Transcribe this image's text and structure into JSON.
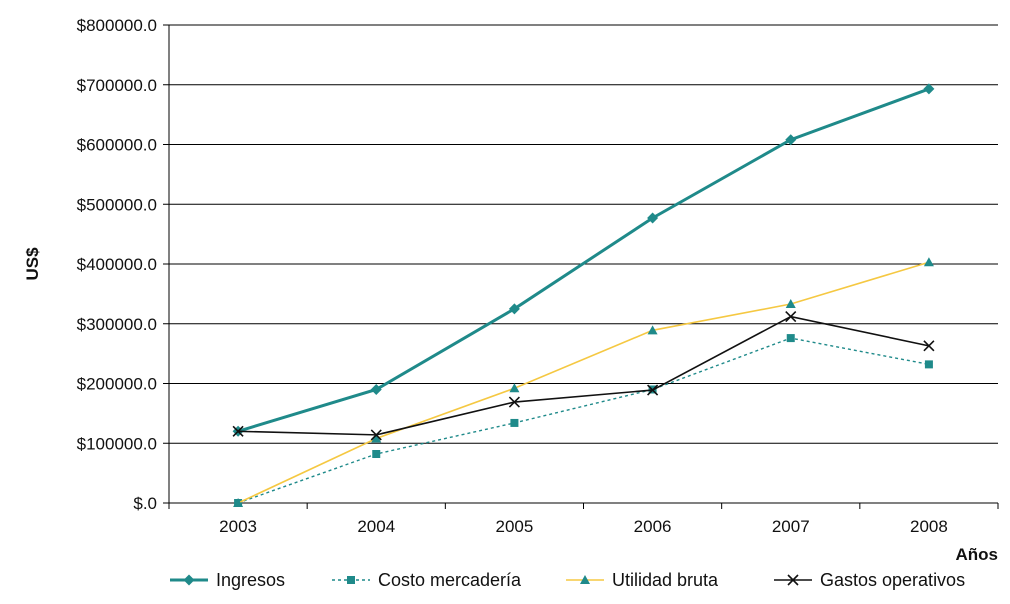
{
  "chart_data": {
    "type": "line",
    "title": "",
    "xlabel": "Años",
    "ylabel": "US$",
    "categories": [
      "2003",
      "2004",
      "2005",
      "2006",
      "2007",
      "2008"
    ],
    "ylim": [
      0,
      800000
    ],
    "y_ticks": [
      0,
      100000,
      200000,
      300000,
      400000,
      500000,
      600000,
      700000,
      800000
    ],
    "y_tick_labels": [
      "$.0",
      "$100000.0",
      "$200000.0",
      "$300000.0",
      "$400000.0",
      "$500000.0",
      "$600000.0",
      "$700000.0",
      "$800000.0"
    ],
    "grid": "horizontal",
    "legend_position": "bottom",
    "series": [
      {
        "name": "Ingresos",
        "values": [
          120000,
          190000,
          325000,
          477000,
          608000,
          693000
        ],
        "color": "#1f8a8a",
        "marker": "diamond",
        "dash": "solid"
      },
      {
        "name": "Costo mercadería",
        "values": [
          0,
          82000,
          134000,
          190000,
          276000,
          232000
        ],
        "color": "#1f8a8a",
        "marker": "square",
        "dash": "dotted"
      },
      {
        "name": "Utilidad bruta",
        "values": [
          0,
          108000,
          192000,
          289000,
          333000,
          403000
        ],
        "color": "#f5c842",
        "marker": "triangle",
        "dash": "solid"
      },
      {
        "name": "Gastos operativos",
        "values": [
          120000,
          114000,
          169000,
          189000,
          312000,
          263000
        ],
        "color": "#111111",
        "marker": "x",
        "dash": "solid"
      }
    ]
  }
}
